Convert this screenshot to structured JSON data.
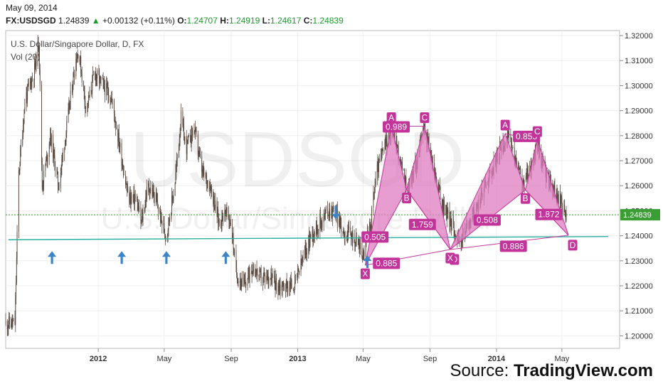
{
  "header": {
    "date": "May 09, 2014",
    "symbol": "FX:USDSGD",
    "last": "1.24839",
    "change": "+0.00132 (+0.11%)",
    "o_label": "O:",
    "o": "1.24707",
    "h_label": "H:",
    "h": "1.24919",
    "l_label": "L:",
    "l": "1.24617",
    "c_label": "C:",
    "c": "1.24839"
  },
  "source": {
    "prefix": "Source: ",
    "brand": "TradingView.com"
  },
  "colors": {
    "candle": "#5a4a40",
    "support": "#2ab0a0",
    "pattern_fill": "#e07cc0",
    "pattern_edge": "#c0399a",
    "pattern_label": "#c2349a",
    "arrow": "#3d85c6",
    "price_tag": "#3a9e35",
    "current_price_line": "#3a9e35"
  },
  "chart_data": {
    "type": "candlestick",
    "title": "U.S. Dollar/Singapore Dollar, D, FX",
    "indicator_label": "Vol (20)",
    "watermark": "USDSGD",
    "watermark_sub": "U.S. Dollar/Singapore Dollar",
    "ylim": [
      1.195,
      1.322
    ],
    "y_ticks": [
      1.2,
      1.21,
      1.22,
      1.23,
      1.24,
      1.25,
      1.26,
      1.27,
      1.28,
      1.29,
      1.3,
      1.31,
      1.32
    ],
    "y_tick_labels": [
      "1.20000",
      "1.21000",
      "1.22000",
      "1.23000",
      "1.24000",
      "1.25000",
      "1.26000",
      "1.27000",
      "1.28000",
      "1.29000",
      "1.30000",
      "1.31000",
      "1.32000"
    ],
    "x_range": [
      "2011-07-15",
      "2014-08-15"
    ],
    "x_ticks": [
      {
        "date": "2012-01-01",
        "label": "2012",
        "bold": true
      },
      {
        "date": "2012-05-01",
        "label": "May",
        "bold": false
      },
      {
        "date": "2012-09-01",
        "label": "Sep",
        "bold": false
      },
      {
        "date": "2013-01-01",
        "label": "2013",
        "bold": true
      },
      {
        "date": "2013-05-01",
        "label": "May",
        "bold": false
      },
      {
        "date": "2013-09-01",
        "label": "Sep",
        "bold": false
      },
      {
        "date": "2014-01-01",
        "label": "2014",
        "bold": true
      },
      {
        "date": "2014-05-01",
        "label": "May",
        "bold": false
      }
    ],
    "price_path": [
      [
        "2011-07-15",
        1.205
      ],
      [
        "2011-08-01",
        1.205
      ],
      [
        "2011-08-08",
        1.265
      ],
      [
        "2011-08-20",
        1.295
      ],
      [
        "2011-09-05",
        1.305
      ],
      [
        "2011-09-14",
        1.318
      ],
      [
        "2011-09-20",
        1.26
      ],
      [
        "2011-10-05",
        1.28
      ],
      [
        "2011-10-20",
        1.26
      ],
      [
        "2011-11-05",
        1.285
      ],
      [
        "2011-11-20",
        1.31
      ],
      [
        "2011-11-26",
        1.314
      ],
      [
        "2011-12-10",
        1.29
      ],
      [
        "2011-12-25",
        1.305
      ],
      [
        "2012-01-10",
        1.3
      ],
      [
        "2012-01-25",
        1.295
      ],
      [
        "2012-02-10",
        1.275
      ],
      [
        "2012-02-25",
        1.255
      ],
      [
        "2012-03-10",
        1.255
      ],
      [
        "2012-03-20",
        1.245
      ],
      [
        "2012-04-01",
        1.26
      ],
      [
        "2012-04-15",
        1.255
      ],
      [
        "2012-04-27",
        1.245
      ],
      [
        "2012-05-05",
        1.24
      ],
      [
        "2012-05-20",
        1.26
      ],
      [
        "2012-06-01",
        1.287
      ],
      [
        "2012-06-10",
        1.275
      ],
      [
        "2012-06-25",
        1.283
      ],
      [
        "2012-07-10",
        1.265
      ],
      [
        "2012-07-25",
        1.26
      ],
      [
        "2012-08-10",
        1.245
      ],
      [
        "2012-08-20",
        1.25
      ],
      [
        "2012-09-01",
        1.245
      ],
      [
        "2012-09-10",
        1.225
      ],
      [
        "2012-09-25",
        1.22
      ],
      [
        "2012-10-10",
        1.228
      ],
      [
        "2012-10-25",
        1.223
      ],
      [
        "2012-11-10",
        1.224
      ],
      [
        "2012-11-25",
        1.22
      ],
      [
        "2012-12-10",
        1.22
      ],
      [
        "2012-12-25",
        1.22
      ],
      [
        "2013-01-10",
        1.23
      ],
      [
        "2013-01-25",
        1.24
      ],
      [
        "2013-02-10",
        1.245
      ],
      [
        "2013-02-25",
        1.25
      ],
      [
        "2013-03-10",
        1.25
      ],
      [
        "2013-03-25",
        1.242
      ],
      [
        "2013-04-10",
        1.24
      ],
      [
        "2013-04-25",
        1.236
      ],
      [
        "2013-05-01",
        1.232
      ],
      [
        "2013-05-15",
        1.245
      ],
      [
        "2013-05-25",
        1.265
      ],
      [
        "2013-06-10",
        1.276
      ],
      [
        "2013-06-24",
        1.284
      ],
      [
        "2013-07-10",
        1.268
      ],
      [
        "2013-07-22",
        1.258
      ],
      [
        "2013-08-10",
        1.272
      ],
      [
        "2013-08-21",
        1.284
      ],
      [
        "2013-09-10",
        1.265
      ],
      [
        "2013-09-25",
        1.252
      ],
      [
        "2013-10-10",
        1.245
      ],
      [
        "2013-10-25",
        1.237
      ],
      [
        "2013-11-10",
        1.245
      ],
      [
        "2013-11-25",
        1.25
      ],
      [
        "2013-12-10",
        1.26
      ],
      [
        "2013-12-25",
        1.267
      ],
      [
        "2014-01-10",
        1.275
      ],
      [
        "2014-01-21",
        1.28
      ],
      [
        "2014-02-05",
        1.27
      ],
      [
        "2014-02-19",
        1.26
      ],
      [
        "2014-03-05",
        1.268
      ],
      [
        "2014-03-17",
        1.276
      ],
      [
        "2014-04-01",
        1.265
      ],
      [
        "2014-04-15",
        1.258
      ],
      [
        "2014-04-25",
        1.255
      ],
      [
        "2014-05-09",
        1.248
      ]
    ],
    "last_value": 1.24839,
    "last_value_label": "1.24839",
    "support_line": {
      "from": [
        "2011-07-20",
        1.2384
      ],
      "to": [
        "2014-07-25",
        1.2397
      ]
    },
    "support_arrows": [
      "2011-10-08",
      "2012-02-13",
      "2012-05-05",
      "2012-08-22"
    ],
    "mid_arrows": [
      {
        "date": "2013-03-12",
        "value": 1.2465,
        "dir": "down"
      },
      {
        "date": "2013-05-09",
        "value": 1.2322,
        "dir": "up"
      }
    ],
    "patterns": [
      {
        "points": {
          "X": [
            "2013-05-05",
            1.2282
          ],
          "A": [
            "2013-06-22",
            1.2838
          ],
          "B": [
            "2013-07-20",
            1.2585
          ],
          "C": [
            "2013-08-22",
            1.2838
          ],
          "D": [
            "2013-10-08",
            1.2345
          ]
        },
        "labels": [
          {
            "at": [
              "2013-05-23",
              1.2395
            ],
            "text": "0.505"
          },
          {
            "at": [
              "2013-07-01",
              1.2835
            ],
            "text": "0.989"
          },
          {
            "at": [
              "2013-08-18",
              1.2445
            ],
            "text": "1.759"
          },
          {
            "at": [
              "2013-06-13",
              1.229
            ],
            "text": "0.885"
          }
        ]
      },
      {
        "points": {
          "X": [
            "2013-10-08",
            1.2345
          ],
          "A": [
            "2014-01-17",
            1.2808
          ],
          "B": [
            "2014-02-23",
            1.2583
          ],
          "C": [
            "2014-03-17",
            1.2782
          ],
          "D": [
            "2014-05-13",
            1.2402
          ]
        },
        "labels": [
          {
            "at": [
              "2013-12-15",
              1.2463
            ],
            "text": "0.508"
          },
          {
            "at": [
              "2014-02-25",
              1.2797
            ],
            "text": "0.853"
          },
          {
            "at": [
              "2014-04-07",
              1.2485
            ],
            "text": "1.872"
          },
          {
            "at": [
              "2014-02-01",
              1.2358
            ],
            "text": "0.886"
          }
        ]
      }
    ]
  }
}
